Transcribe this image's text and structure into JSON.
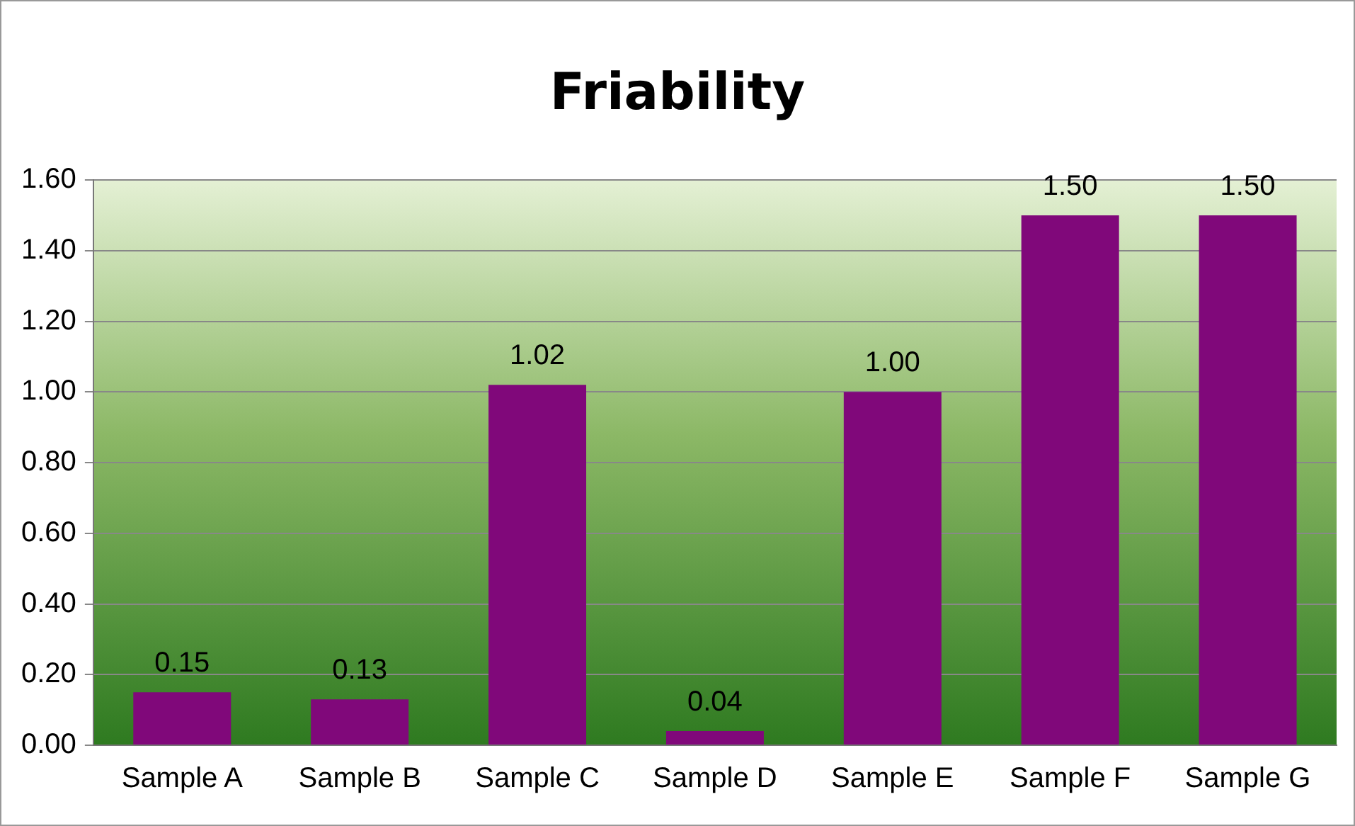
{
  "chart_data": {
    "type": "bar",
    "title": "Friability",
    "categories": [
      "Sample A",
      "Sample B",
      "Sample C",
      "Sample D",
      "Sample E",
      "Sample F",
      "Sample G"
    ],
    "values": [
      0.15,
      0.13,
      1.02,
      0.04,
      1.0,
      1.5,
      1.5
    ],
    "value_labels": [
      "0.15",
      "0.13",
      "1.02",
      "0.04",
      "1.00",
      "1.50",
      "1.50"
    ],
    "color": "#80087a",
    "ylim": [
      0,
      1.6
    ],
    "yticks": [
      {
        "value": 0,
        "label": "0.00"
      },
      {
        "value": 0.2,
        "label": "0.20"
      },
      {
        "value": 0.4,
        "label": "0.40"
      },
      {
        "value": 0.6,
        "label": "0.60"
      },
      {
        "value": 0.8,
        "label": "0.80"
      },
      {
        "value": 1.0,
        "label": "1.00"
      },
      {
        "value": 1.2,
        "label": "1.20"
      },
      {
        "value": 1.4,
        "label": "1.40"
      },
      {
        "value": 1.6,
        "label": "1.60"
      }
    ],
    "grid": "y"
  }
}
